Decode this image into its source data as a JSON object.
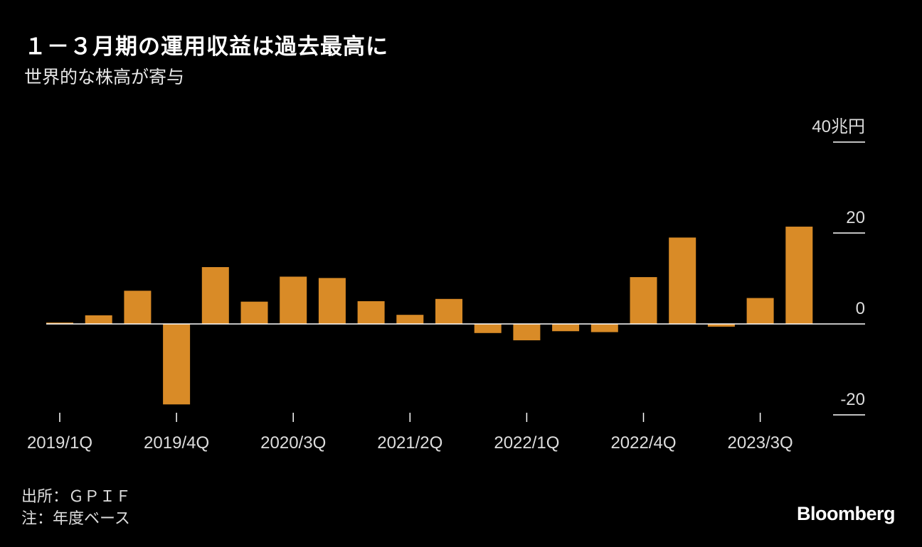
{
  "header": {
    "title": "１－３月期の運用収益は過去最高に",
    "subtitle": "世界的な株高が寄与"
  },
  "footer": {
    "source": "出所：ＧＰＩＦ",
    "note": "注：年度ベース",
    "brand": "Bloomberg"
  },
  "colors": {
    "bar": "#D98B27",
    "baseline": "#ffffff",
    "background": "#000000"
  },
  "chart_data": {
    "type": "bar",
    "categories": [
      "2019/1Q",
      "2019/2Q",
      "2019/3Q",
      "2019/4Q",
      "2020/1Q",
      "2020/2Q",
      "2020/3Q",
      "2020/4Q",
      "2021/1Q",
      "2021/2Q",
      "2021/3Q",
      "2021/4Q",
      "2022/1Q",
      "2022/2Q",
      "2022/3Q",
      "2022/4Q",
      "2023/1Q",
      "2023/2Q",
      "2023/3Q",
      "2023/4Q"
    ],
    "values": [
      0.3,
      1.9,
      7.3,
      -17.7,
      12.5,
      4.9,
      10.4,
      10.1,
      5.0,
      2.0,
      5.5,
      -2.0,
      -3.6,
      -1.6,
      -1.8,
      10.3,
      19.0,
      -0.6,
      5.7,
      21.4
    ],
    "x_tick_labels": [
      "2019/1Q",
      "2019/4Q",
      "2020/3Q",
      "2021/2Q",
      "2022/1Q",
      "2022/4Q",
      "2023/3Q"
    ],
    "y_ticks": [
      40,
      20,
      0,
      -20
    ],
    "y_tick_labels": [
      "40兆円",
      "20",
      "0",
      "-20"
    ],
    "ylim": [
      -20,
      40
    ],
    "y_axis_position": "right",
    "grid": false
  }
}
